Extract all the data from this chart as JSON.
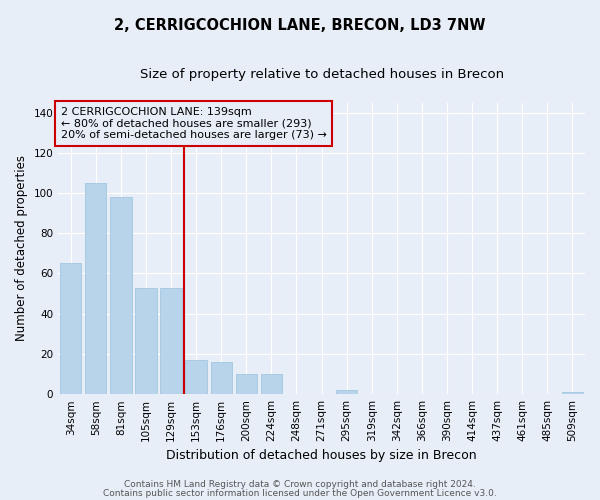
{
  "title": "2, CERRIGCOCHION LANE, BRECON, LD3 7NW",
  "subtitle": "Size of property relative to detached houses in Brecon",
  "xlabel": "Distribution of detached houses by size in Brecon",
  "ylabel": "Number of detached properties",
  "categories": [
    "34sqm",
    "58sqm",
    "81sqm",
    "105sqm",
    "129sqm",
    "153sqm",
    "176sqm",
    "200sqm",
    "224sqm",
    "248sqm",
    "271sqm",
    "295sqm",
    "319sqm",
    "342sqm",
    "366sqm",
    "390sqm",
    "414sqm",
    "437sqm",
    "461sqm",
    "485sqm",
    "509sqm"
  ],
  "values": [
    65,
    105,
    98,
    53,
    53,
    17,
    16,
    10,
    10,
    0,
    0,
    2,
    0,
    0,
    0,
    0,
    0,
    0,
    0,
    0,
    1
  ],
  "bar_color": "#b8d4ea",
  "bar_edge_color": "#9bbfde",
  "bg_color": "#e8eef8",
  "grid_color": "#ffffff",
  "vline_x_index": 4,
  "vline_color": "#cc0000",
  "annotation_box_color": "#cc0000",
  "annotation_lines": [
    "2 CERRIGCOCHION LANE: 139sqm",
    "← 80% of detached houses are smaller (293)",
    "20% of semi-detached houses are larger (73) →"
  ],
  "ylim": [
    0,
    145
  ],
  "yticks": [
    0,
    20,
    40,
    60,
    80,
    100,
    120,
    140
  ],
  "footer1": "Contains HM Land Registry data © Crown copyright and database right 2024.",
  "footer2": "Contains public sector information licensed under the Open Government Licence v3.0.",
  "title_fontsize": 10.5,
  "subtitle_fontsize": 9.5,
  "xlabel_fontsize": 9,
  "ylabel_fontsize": 8.5,
  "tick_fontsize": 7.5,
  "annotation_fontsize": 8,
  "footer_fontsize": 6.5
}
